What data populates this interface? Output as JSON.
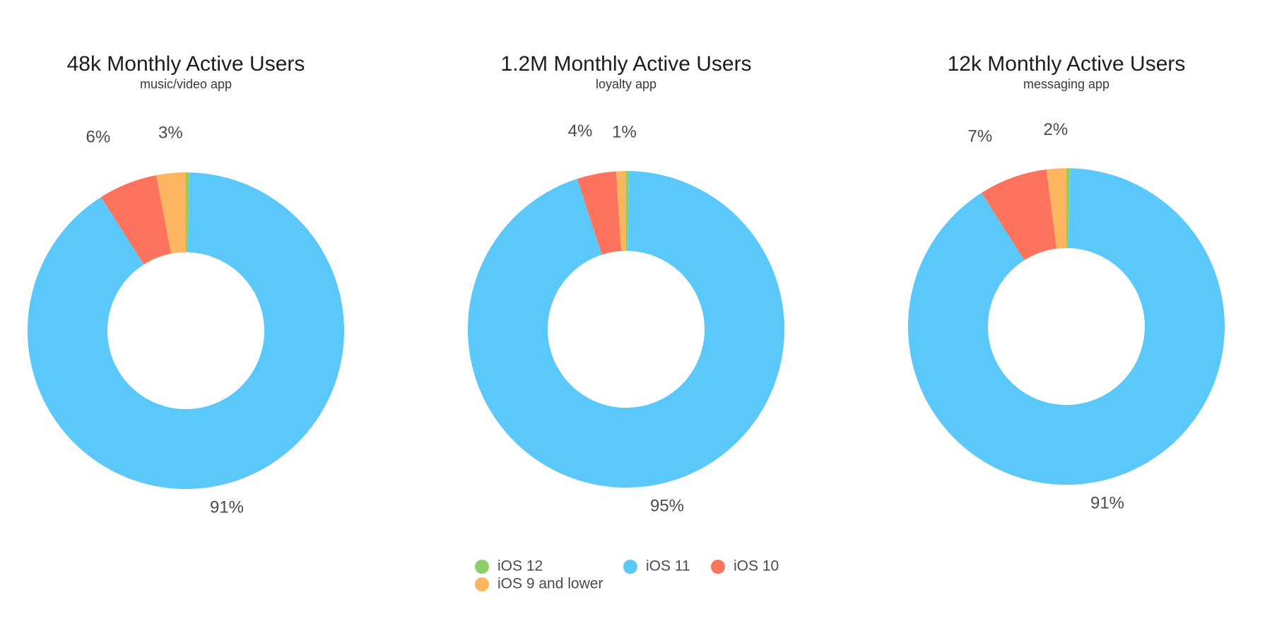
{
  "colors": {
    "ios12": "#8ccf66",
    "ios11": "#5ac8fa",
    "ios10": "#fd735d",
    "ios9_and_lower": "#fdb65f",
    "background": "#ffffff",
    "label_text": "#4a4a4a",
    "title_text": "#1d1d1f"
  },
  "chart_data": [
    {
      "type": "pie",
      "variant": "donut",
      "title": "48k Monthly Active Users",
      "subtitle": "music/video app",
      "categories": [
        "iOS 12",
        "iOS 11",
        "iOS 10",
        "iOS 9 and lower"
      ],
      "values": [
        0.4,
        90.6,
        6,
        3
      ],
      "labels": [
        "",
        "91%",
        "6%",
        "3%"
      ]
    },
    {
      "type": "pie",
      "variant": "donut",
      "title": "1.2M Monthly Active Users",
      "subtitle": "loyalty app",
      "categories": [
        "iOS 12",
        "iOS 11",
        "iOS 10",
        "iOS 9 and lower"
      ],
      "values": [
        0.3,
        94.7,
        4,
        1
      ],
      "labels": [
        "",
        "95%",
        "4%",
        "1%"
      ]
    },
    {
      "type": "pie",
      "variant": "donut",
      "title": "12k Monthly Active Users",
      "subtitle": "messaging app",
      "categories": [
        "iOS 12",
        "iOS 11",
        "iOS 10",
        "iOS 9 and lower"
      ],
      "values": [
        0.4,
        90.6,
        7,
        2
      ],
      "labels": [
        "",
        "91%",
        "7%",
        "2%"
      ]
    }
  ],
  "legend": {
    "items": [
      {
        "label": "iOS 12",
        "color_key": "ios12"
      },
      {
        "label": "iOS 11",
        "color_key": "ios11"
      },
      {
        "label": "iOS 10",
        "color_key": "ios10"
      },
      {
        "label": "iOS 9 and lower",
        "color_key": "ios9_and_lower"
      }
    ]
  }
}
